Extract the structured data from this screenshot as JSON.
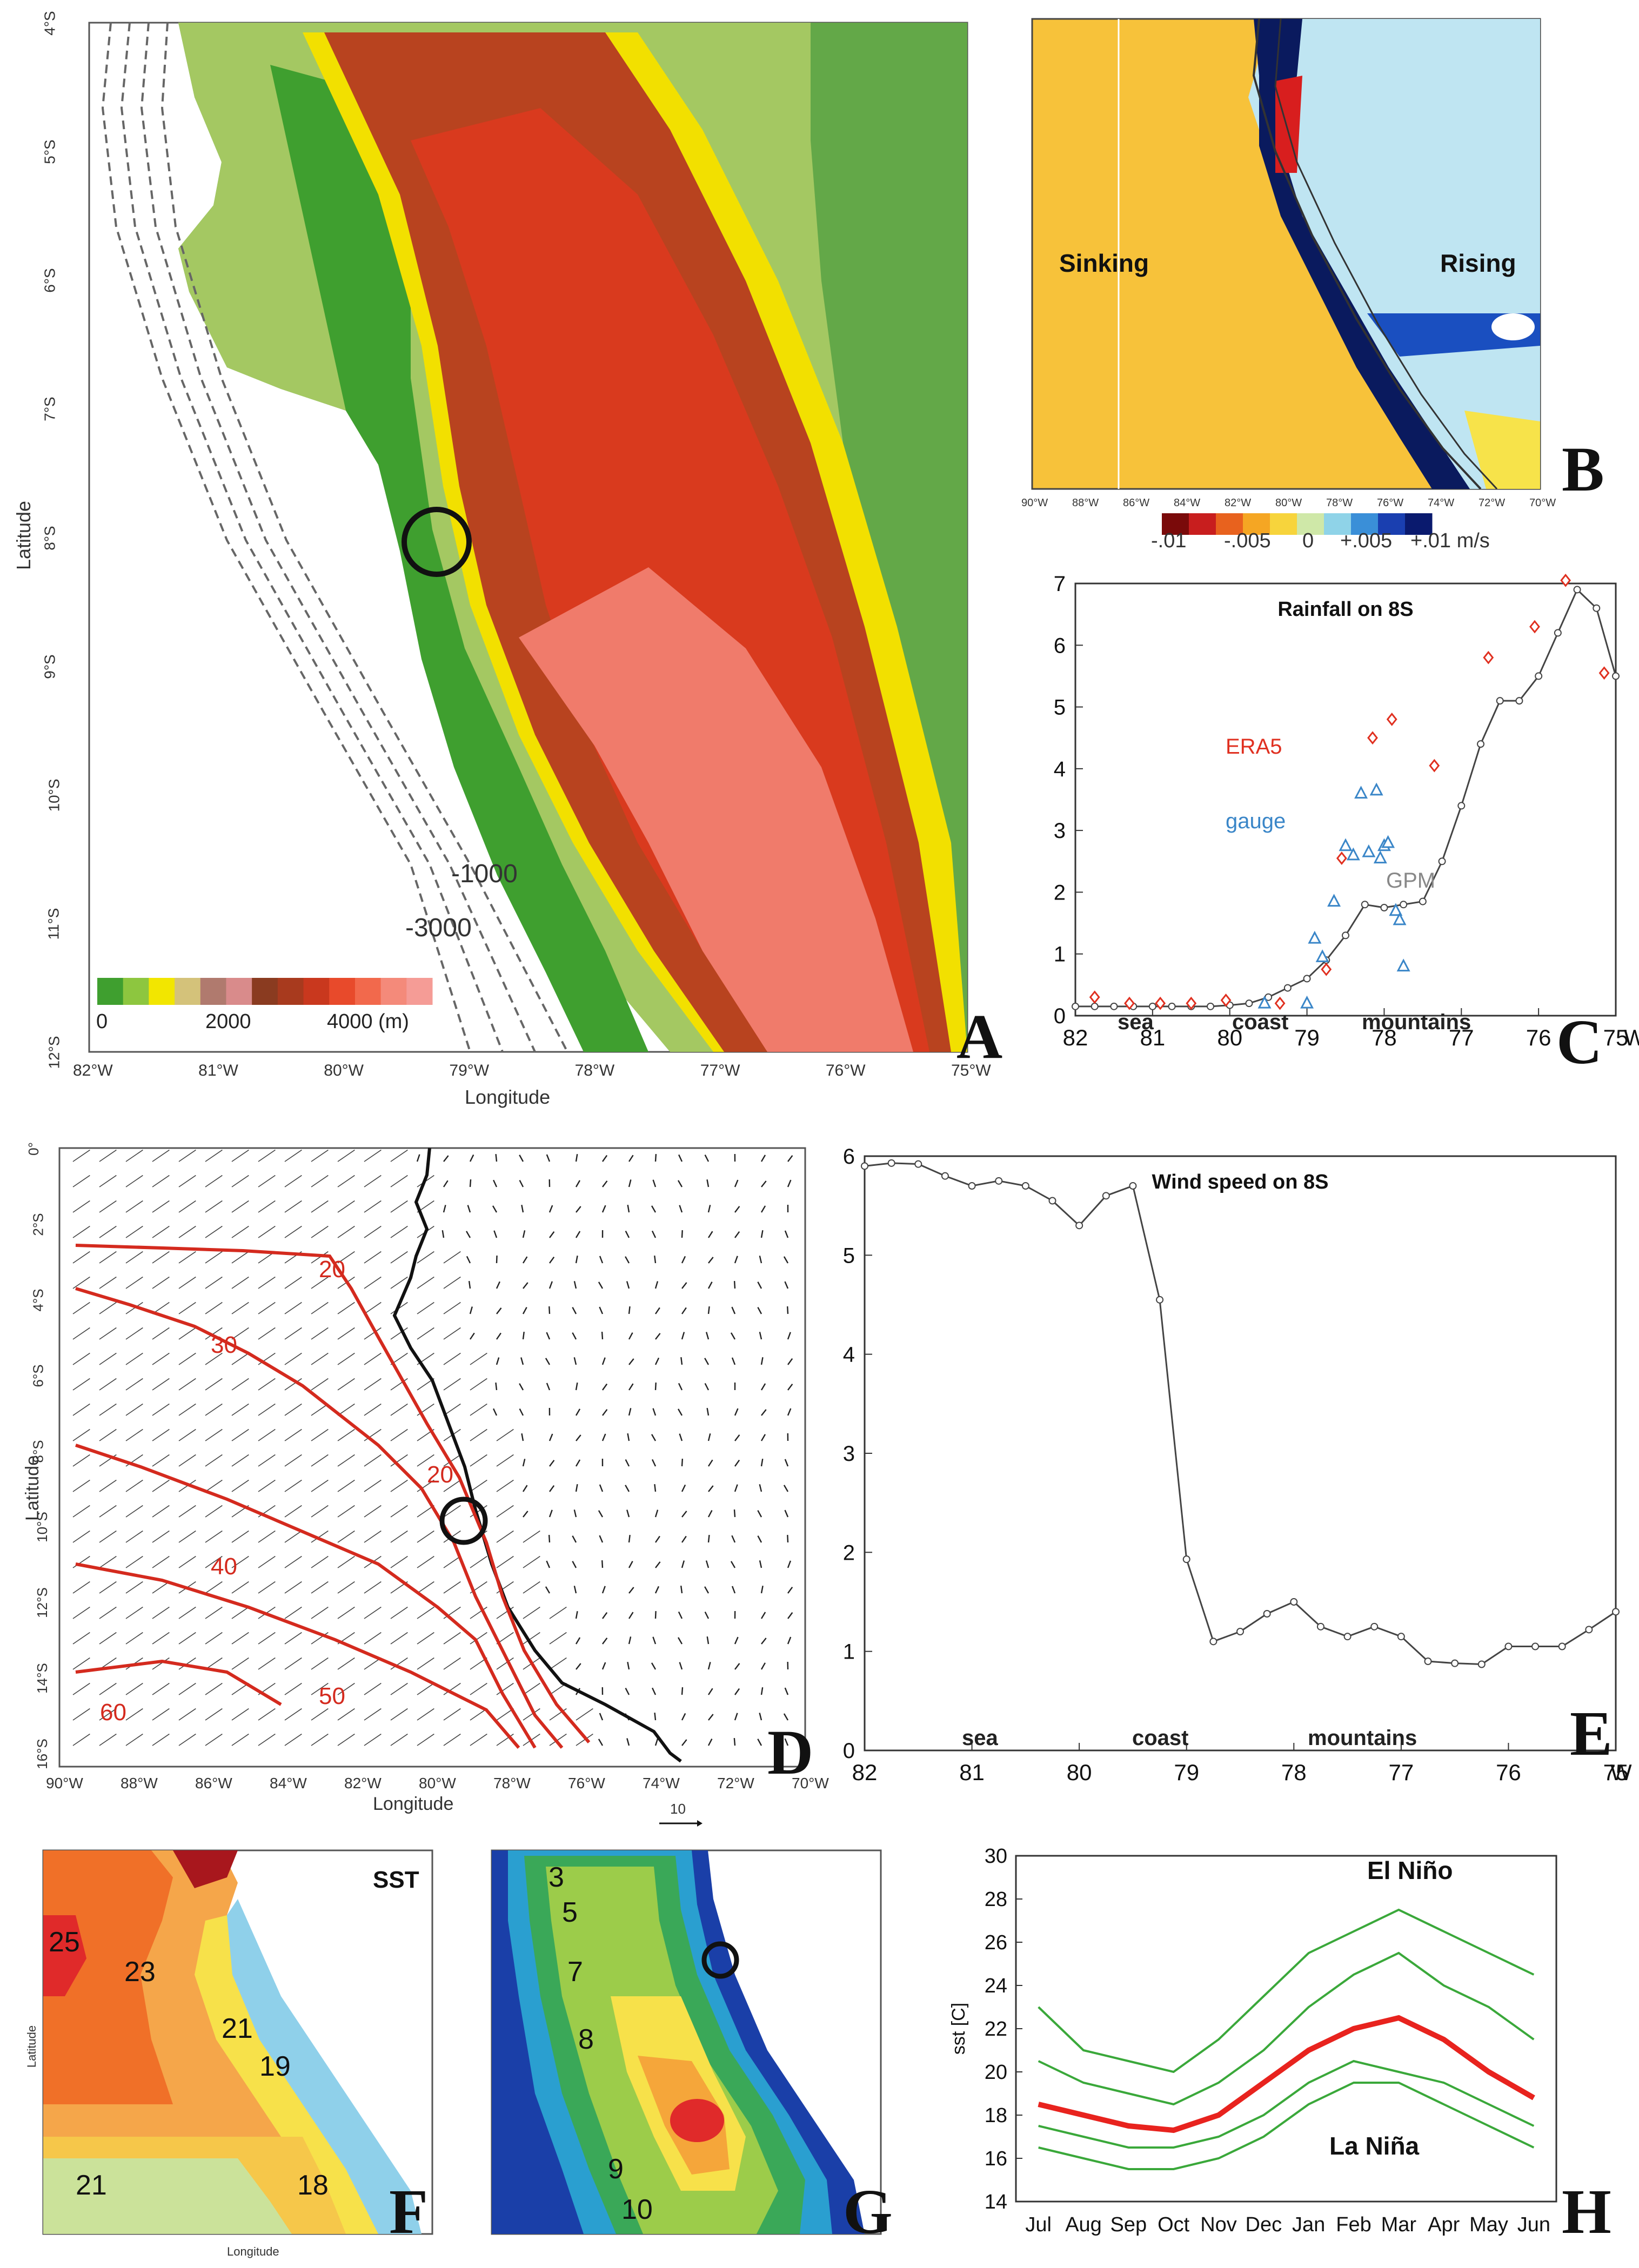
{
  "panels": {
    "A": {
      "letter": "A",
      "x_axis_title": "Longitude",
      "y_axis_title": "Latitude",
      "lon_ticks": [
        "82°W",
        "81°W",
        "80°W",
        "79°W",
        "78°W",
        "77°W",
        "76°W",
        "75°W"
      ],
      "lat_ticks": [
        "4°S",
        "5°S",
        "6°S",
        "7°S",
        "8°S",
        "9°S",
        "10°S",
        "11°S",
        "12°S"
      ],
      "contour_labels": [
        "-1000",
        "-3000"
      ],
      "colorbar_ticks": [
        "0",
        "2000",
        "4000",
        "(m)"
      ],
      "colorbar_colors": [
        "#3f9f2f",
        "#8dc63f",
        "#f2e600",
        "#d4c27a",
        "#b07a6e",
        "#d98b8b",
        "#8a3b20",
        "#a83a1e",
        "#c9381e",
        "#e84a2b",
        "#f2694c",
        "#f48a7a",
        "#f59c96"
      ]
    },
    "B": {
      "letter": "B",
      "labels": [
        "Sinking",
        "Rising"
      ],
      "lon_ticks": [
        "90°W",
        "88°W",
        "86°W",
        "84°W",
        "82°W",
        "80°W",
        "78°W",
        "76°W",
        "74°W",
        "72°W",
        "70°W"
      ],
      "colorbar_ticks": [
        "-.01",
        "-.005",
        "0",
        "+.005",
        "+.01 m/s"
      ],
      "colorbar_colors": [
        "#7a0a0a",
        "#c81e1e",
        "#e8621e",
        "#f5a623",
        "#f7d43c",
        "#cfe8a8",
        "#8fd3e8",
        "#3a8fd8",
        "#1a3fb0",
        "#0a1a6e"
      ]
    },
    "C": {
      "letter": "C",
      "annotations": [
        "ERA5",
        "gauge",
        "GPM"
      ],
      "region_labels": [
        "sea",
        "coast",
        "mountains"
      ],
      "x_unit": "W"
    },
    "D": {
      "letter": "D",
      "x_axis_title": "Longitude",
      "y_axis_title": "Latitude",
      "lon_ticks": [
        "90°W",
        "88°W",
        "86°W",
        "84°W",
        "82°W",
        "80°W",
        "78°W",
        "76°W",
        "74°W",
        "72°W",
        "70°W"
      ],
      "lat_ticks": [
        "0°",
        "2°S",
        "4°S",
        "6°S",
        "8°S",
        "10°S",
        "12°S",
        "14°S",
        "16°S"
      ],
      "contour_labels": [
        "20",
        "30",
        "20",
        "40",
        "50",
        "60"
      ],
      "vector_scale": "10",
      "contour_color": "#d42a1e"
    },
    "E": {
      "letter": "E",
      "region_labels": [
        "sea",
        "coast",
        "mountains"
      ],
      "x_unit": "W"
    },
    "F": {
      "letter": "F",
      "title": "SST",
      "value_labels": [
        "25",
        "23",
        "21",
        "19",
        "21",
        "18"
      ],
      "x_axis_title": "Longitude",
      "y_axis_title": "Latitude"
    },
    "G": {
      "letter": "G",
      "value_labels": [
        "3",
        "5",
        "7",
        "8",
        "9",
        "10"
      ]
    },
    "H": {
      "letter": "H",
      "labels": [
        "El Niño",
        "La Niña"
      ],
      "mean_color": "#e8231e",
      "envelope_color": "#3aa83a"
    }
  },
  "chart_data": [
    {
      "id": "C",
      "type": "line",
      "title": "Rainfall on 8S",
      "xlabel": "",
      "ylabel": "",
      "xlim": [
        82,
        75
      ],
      "ylim": [
        0,
        7
      ],
      "x_ticks": [
        82,
        81,
        80,
        79,
        78,
        77,
        76,
        75
      ],
      "y_ticks": [
        0,
        1,
        2,
        3,
        4,
        5,
        6,
        7
      ],
      "series": [
        {
          "name": "GPM",
          "color": "#444444",
          "marker": "circle",
          "x": [
            82.0,
            81.75,
            81.5,
            81.25,
            81.0,
            80.75,
            80.5,
            80.25,
            80.0,
            79.75,
            79.5,
            79.25,
            79.0,
            78.75,
            78.5,
            78.25,
            78.0,
            77.75,
            77.5,
            77.25,
            77.0,
            76.75,
            76.5,
            76.25,
            76.0,
            75.75,
            75.5,
            75.25,
            75.0
          ],
          "y": [
            0.15,
            0.15,
            0.15,
            0.15,
            0.15,
            0.15,
            0.15,
            0.15,
            0.17,
            0.2,
            0.3,
            0.45,
            0.6,
            0.9,
            1.3,
            1.8,
            1.75,
            1.8,
            1.85,
            2.5,
            3.4,
            4.4,
            5.1,
            5.1,
            5.5,
            6.2,
            6.9,
            6.6,
            5.5
          ]
        },
        {
          "name": "ERA5",
          "color": "#e03020",
          "marker": "diamond",
          "x": [
            81.75,
            81.3,
            80.9,
            80.5,
            80.05,
            79.35,
            78.75,
            78.55,
            78.15,
            77.9,
            77.35,
            76.65,
            76.05,
            75.65,
            75.15
          ],
          "y": [
            0.3,
            0.2,
            0.2,
            0.2,
            0.25,
            0.2,
            0.75,
            2.55,
            4.5,
            4.8,
            4.05,
            5.8,
            6.3,
            7.05,
            5.55
          ]
        },
        {
          "name": "gauge",
          "color": "#3a86c8",
          "marker": "triangle",
          "x": [
            79.55,
            79.0,
            78.9,
            78.8,
            78.65,
            78.5,
            78.4,
            78.3,
            78.2,
            78.1,
            78.05,
            78.0,
            77.95,
            77.85,
            77.8,
            77.75
          ],
          "y": [
            0.2,
            0.2,
            1.25,
            0.95,
            1.85,
            2.75,
            2.6,
            3.6,
            2.65,
            3.65,
            2.55,
            2.75,
            2.8,
            1.7,
            1.55,
            0.8
          ]
        }
      ]
    },
    {
      "id": "E",
      "type": "line",
      "title": "Wind speed on 8S",
      "xlabel": "",
      "ylabel": "",
      "xlim": [
        82,
        75
      ],
      "ylim": [
        0,
        6
      ],
      "x_ticks": [
        82,
        81,
        80,
        79,
        78,
        77,
        76,
        75
      ],
      "y_ticks": [
        0,
        1,
        2,
        3,
        4,
        5,
        6
      ],
      "series": [
        {
          "name": "",
          "color": "#444444",
          "marker": "circle",
          "x": [
            82.0,
            81.75,
            81.5,
            81.25,
            81.0,
            80.75,
            80.5,
            80.25,
            80.0,
            79.75,
            79.5,
            79.25,
            79.0,
            78.75,
            78.5,
            78.25,
            78.0,
            77.75,
            77.5,
            77.25,
            77.0,
            76.75,
            76.5,
            76.25,
            76.0,
            75.75,
            75.5,
            75.25,
            75.0
          ],
          "y": [
            5.9,
            5.93,
            5.92,
            5.8,
            5.7,
            5.75,
            5.7,
            5.55,
            5.3,
            5.6,
            5.7,
            4.55,
            1.93,
            1.1,
            1.2,
            1.38,
            1.5,
            1.25,
            1.15,
            1.25,
            1.15,
            0.9,
            0.88,
            0.87,
            1.05,
            1.05,
            1.05,
            1.22,
            1.4
          ]
        }
      ]
    },
    {
      "id": "H",
      "type": "line",
      "title": "",
      "xlabel": "",
      "ylabel": "sst [C]",
      "ylim": [
        14,
        30
      ],
      "y_ticks": [
        14,
        16,
        18,
        20,
        22,
        24,
        26,
        28,
        30
      ],
      "categories": [
        "Jul",
        "Aug",
        "Sep",
        "Oct",
        "Nov",
        "Dec",
        "Jan",
        "Feb",
        "Mar",
        "Apr",
        "May",
        "Jun"
      ],
      "series": [
        {
          "name": "El Niño",
          "role": "upper",
          "color": "#3aa83a",
          "values": [
            23.0,
            21.0,
            20.5,
            20.0,
            21.5,
            23.5,
            25.5,
            26.5,
            27.5,
            26.5,
            25.5,
            24.5
          ]
        },
        {
          "name": "",
          "role": "upper-mid",
          "color": "#3aa83a",
          "values": [
            20.5,
            19.5,
            19.0,
            18.5,
            19.5,
            21.0,
            23.0,
            24.5,
            25.5,
            24.0,
            23.0,
            21.5
          ]
        },
        {
          "name": "mean",
          "role": "mean",
          "color": "#e8231e",
          "values": [
            18.5,
            18.0,
            17.5,
            17.3,
            18.0,
            19.5,
            21.0,
            22.0,
            22.5,
            21.5,
            20.0,
            18.8
          ]
        },
        {
          "name": "",
          "role": "lower-mid",
          "color": "#3aa83a",
          "values": [
            17.5,
            17.0,
            16.5,
            16.5,
            17.0,
            18.0,
            19.5,
            20.5,
            20.0,
            19.5,
            18.5,
            17.5
          ]
        },
        {
          "name": "La Niña",
          "role": "lower",
          "color": "#3aa83a",
          "values": [
            16.5,
            16.0,
            15.5,
            15.5,
            16.0,
            17.0,
            18.5,
            19.5,
            19.5,
            18.5,
            17.5,
            16.5
          ]
        }
      ]
    }
  ]
}
